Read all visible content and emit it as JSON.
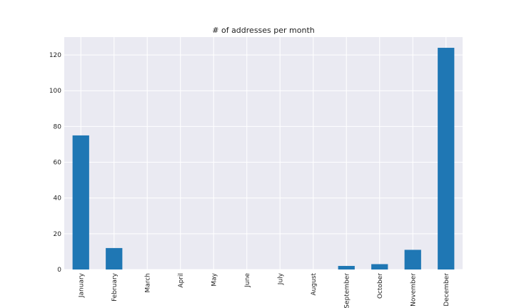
{
  "chart_data": {
    "type": "bar",
    "title": "# of addresses per month",
    "xlabel": "",
    "ylabel": "",
    "categories": [
      "January",
      "February",
      "March",
      "April",
      "May",
      "June",
      "July",
      "August",
      "September",
      "October",
      "November",
      "December"
    ],
    "values": [
      75,
      12,
      0,
      0,
      0,
      0,
      0,
      0,
      2,
      3,
      11,
      124
    ],
    "ylim": [
      0,
      130
    ],
    "yticks": [
      "0",
      "20",
      "40",
      "60",
      "80",
      "100",
      "120"
    ],
    "grid": true,
    "legend": "none",
    "colors": {
      "bar": "#1f77b4",
      "background": "#eaeaf2",
      "grid": "#ffffff"
    }
  }
}
